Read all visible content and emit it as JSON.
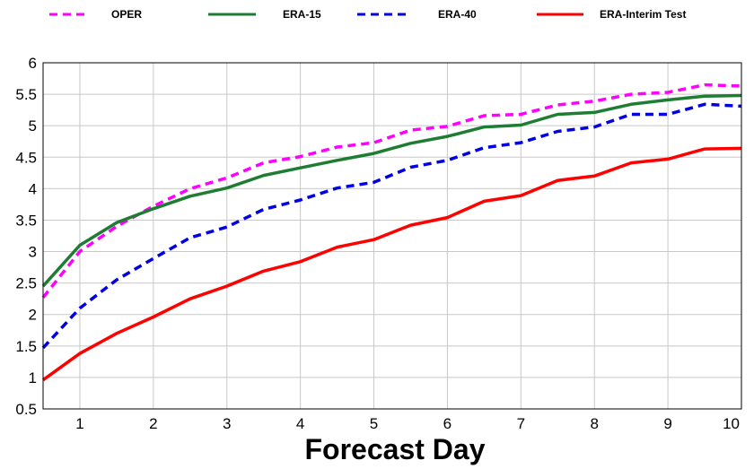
{
  "chart_data": {
    "type": "line",
    "title": "",
    "xlabel": "Forecast Day",
    "ylabel": "",
    "xlim": [
      0.5,
      10
    ],
    "ylim": [
      0.5,
      6
    ],
    "grid": true,
    "legend_position": "top",
    "x_ticks": [
      1,
      2,
      3,
      4,
      5,
      6,
      7,
      8,
      9,
      10
    ],
    "y_ticks": [
      0.5,
      1,
      1.5,
      2,
      2.5,
      3,
      3.5,
      4,
      4.5,
      5,
      5.5,
      6
    ],
    "x_tick_labels": [
      "1",
      "2",
      "3",
      "4",
      "5",
      "6",
      "7",
      "8",
      "9",
      "10"
    ],
    "y_tick_labels": [
      "0.5",
      "1",
      "1.5",
      "2",
      "2.5",
      "3",
      "3.5",
      "4",
      "4.5",
      "5",
      "5.5",
      "6"
    ],
    "x": [
      0.5,
      1,
      1.5,
      2,
      2.5,
      3,
      3.5,
      4,
      4.5,
      5,
      5.5,
      6,
      6.5,
      7,
      7.5,
      8,
      8.5,
      9,
      9.5,
      10
    ],
    "series": [
      {
        "name": "OPER",
        "color": "#ff00ff",
        "dashed": true,
        "values": [
          2.27,
          3.0,
          3.4,
          3.72,
          4.0,
          4.17,
          4.41,
          4.51,
          4.66,
          4.73,
          4.93,
          4.99,
          5.16,
          5.18,
          5.33,
          5.39,
          5.5,
          5.53,
          5.65,
          5.63
        ]
      },
      {
        "name": "ERA-15",
        "color": "#1e7d32",
        "dashed": false,
        "values": [
          2.45,
          3.1,
          3.46,
          3.68,
          3.88,
          4.01,
          4.21,
          4.33,
          4.45,
          4.56,
          4.72,
          4.83,
          4.98,
          5.01,
          5.18,
          5.21,
          5.34,
          5.41,
          5.47,
          5.48
        ]
      },
      {
        "name": "ERA-40",
        "color": "#0000e0",
        "dashed": true,
        "values": [
          1.47,
          2.1,
          2.55,
          2.89,
          3.22,
          3.39,
          3.67,
          3.82,
          4.01,
          4.1,
          4.34,
          4.45,
          4.65,
          4.73,
          4.91,
          4.98,
          5.18,
          5.18,
          5.34,
          5.31
        ]
      },
      {
        "name": "ERA-Interim Test",
        "color": "#ff0000",
        "dashed": false,
        "values": [
          0.96,
          1.38,
          1.7,
          1.96,
          2.25,
          2.45,
          2.69,
          2.84,
          3.07,
          3.19,
          3.42,
          3.54,
          3.8,
          3.89,
          4.13,
          4.2,
          4.41,
          4.47,
          4.63,
          4.64
        ]
      }
    ]
  }
}
